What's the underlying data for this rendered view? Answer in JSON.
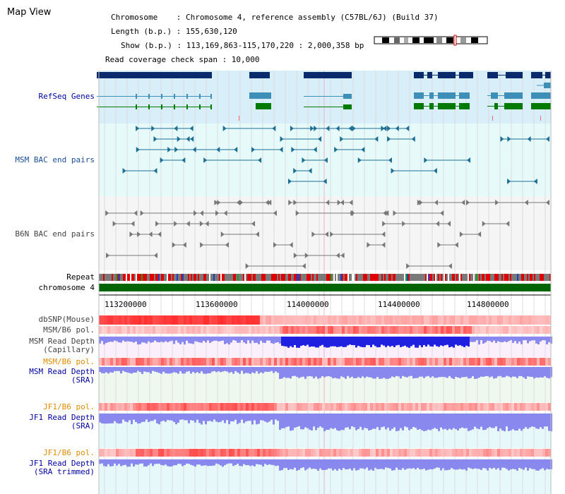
{
  "page": {
    "title": "Map View"
  },
  "info": {
    "chromosome": "Chromosome    : Chromosome 4, reference assembly (C57BL/6J) (Build 37)",
    "length": "Length (b.p.) : 155,630,120",
    "show": "Show (b.p.) : 113,169,863-115,170,220 : 2,000,358 bp",
    "coverage": "Read coverage check span : 10,000"
  },
  "tracks": {
    "refseq": "RefSeq Genes",
    "msm_bac": "MSM BAC end pairs",
    "b6n_bac": "B6N BAC end pairs",
    "repeat": "Repeat",
    "chromosome": "chromosome 4",
    "dbsnp": "dbSNP(Mouse)",
    "msm_b6_pol": "MSM/B6 pol.",
    "msm_depth_cap_1": "MSM Read Depth",
    "msm_depth_cap_2": "(Capillary)",
    "msm_b6_pol_2": "MSM/B6 pol.",
    "msm_depth_sra_1": "MSM Read Depth",
    "msm_depth_sra_2": "(SRA)",
    "jf1_b6_pol": "JF1/B6 pol.",
    "jf1_depth_sra_1": "JF1 Read Depth",
    "jf1_depth_sra_2": "(SRA)",
    "jf1_b6_pol_2": "JF1/B6 pol.",
    "jf1_depth_trim_1": "JF1 Read Depth",
    "jf1_depth_trim_2": "(SRA trimmed)"
  },
  "axis": {
    "ticks": [
      "113200000",
      "113600000",
      "114000000",
      "114400000",
      "114800000"
    ]
  },
  "colors": {
    "gene_dark": "#0b2a6b",
    "gene_mid": "#3e8fb8",
    "gene_green": "#007a00",
    "refseq_bg": "#d8eef8",
    "msm_bg": "#e6fafa",
    "b6n_bg": "#f4f4f4",
    "chrom_green": "#006400",
    "depth_blue": "#2020e0",
    "depth_light": "#8888ee"
  }
}
